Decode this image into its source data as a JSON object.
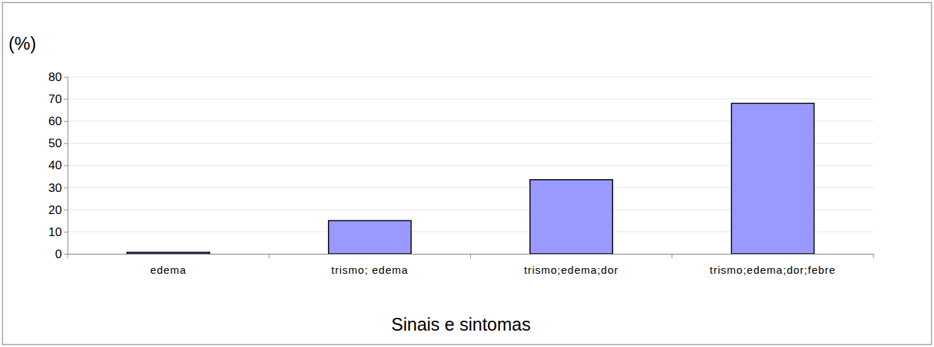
{
  "chart_data": {
    "type": "bar",
    "y_label": "(%)",
    "x_label": "Sinais e sintomas",
    "categories": [
      "edema",
      "trismo; edema",
      "trismo;edema;dor",
      "trismo;edema;dor;febre"
    ],
    "values": [
      0.7,
      15,
      33.5,
      68
    ],
    "color": "#9999ff",
    "ylim": [
      0,
      80
    ],
    "yticks": [
      0,
      10,
      20,
      30,
      40,
      50,
      60,
      70,
      80
    ],
    "grid": true
  }
}
